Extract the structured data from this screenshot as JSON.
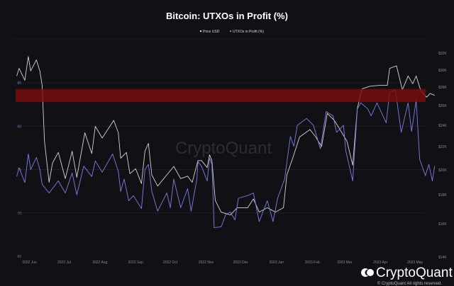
{
  "chart_data": {
    "type": "line",
    "title": "Bitcoin: UTXOs in Profit (%)",
    "legend": [
      "Price USD",
      "UTXOs in Profit (%)"
    ],
    "legend_placement": "top-center",
    "grid": "horizontal",
    "x_ticks": [
      "2022 Jun",
      "2022 Jul",
      "2022 Aug",
      "2022 Sep",
      "2022 Oct",
      "2022 Nov",
      "2022 Dec",
      "2023 Jan",
      "2023 Feb",
      "2023 Mar",
      "2023 Apr",
      "2023 May"
    ],
    "x_tick_dates": [
      "2022-06-01",
      "2022-07-01",
      "2022-08-01",
      "2022-09-01",
      "2022-10-01",
      "2022-11-01",
      "2022-12-01",
      "2023-01-01",
      "2023-02-01",
      "2023-03-01",
      "2023-04-01",
      "2023-05-01"
    ],
    "xlim": [
      "2022-05-20",
      "2023-05-20"
    ],
    "y_left": {
      "ticks": [
        "65",
        "70",
        "75",
        "80",
        "85"
      ],
      "tick_values": [
        65,
        70,
        75,
        80,
        85
      ],
      "ylim": [
        65,
        89.5
      ]
    },
    "y_right": {
      "ticks": [
        "$14K",
        "$16K",
        "$18K",
        "$20K",
        "$22K",
        "$24K",
        "$26K",
        "$28K",
        "$30K",
        "$32K"
      ],
      "tick_values": [
        14000,
        16000,
        18000,
        20000,
        22000,
        24000,
        26000,
        28000,
        30000,
        32000
      ]
    },
    "highlight_band": {
      "from": 82.8,
      "to": 84.3,
      "axis": "left",
      "color": "#7a0c0c"
    },
    "series": [
      {
        "name": "Price USD",
        "axis": "right",
        "color": "#d4d4d4",
        "points": [
          [
            "2022-05-21",
            29300
          ],
          [
            "2022-05-23",
            30200
          ],
          [
            "2022-05-28",
            28800
          ],
          [
            "2022-05-31",
            31600
          ],
          [
            "2022-06-02",
            29900
          ],
          [
            "2022-06-07",
            31200
          ],
          [
            "2022-06-10",
            29900
          ],
          [
            "2022-06-12",
            28200
          ],
          [
            "2022-06-14",
            22500
          ],
          [
            "2022-06-18",
            19000
          ],
          [
            "2022-06-21",
            20600
          ],
          [
            "2022-06-26",
            21500
          ],
          [
            "2022-07-02",
            19300
          ],
          [
            "2022-07-08",
            21600
          ],
          [
            "2022-07-12",
            19400
          ],
          [
            "2022-07-19",
            23300
          ],
          [
            "2022-07-25",
            21400
          ],
          [
            "2022-07-28",
            23900
          ],
          [
            "2022-08-03",
            22800
          ],
          [
            "2022-08-13",
            24500
          ],
          [
            "2022-08-17",
            23300
          ],
          [
            "2022-08-19",
            21000
          ],
          [
            "2022-08-24",
            21500
          ],
          [
            "2022-08-27",
            19700
          ],
          [
            "2022-09-01",
            20100
          ],
          [
            "2022-09-06",
            18900
          ],
          [
            "2022-09-09",
            21600
          ],
          [
            "2022-09-12",
            22300
          ],
          [
            "2022-09-15",
            19600
          ],
          [
            "2022-09-20",
            18700
          ],
          [
            "2022-09-28",
            19600
          ],
          [
            "2022-10-04",
            20300
          ],
          [
            "2022-10-10",
            19300
          ],
          [
            "2022-10-16",
            19500
          ],
          [
            "2022-10-20",
            19000
          ],
          [
            "2022-10-25",
            20800
          ],
          [
            "2022-10-28",
            20800
          ],
          [
            "2022-11-02",
            20200
          ],
          [
            "2022-11-04",
            21300
          ],
          [
            "2022-11-06",
            20800
          ],
          [
            "2022-11-09",
            17600
          ],
          [
            "2022-11-14",
            16800
          ],
          [
            "2022-11-22",
            16600
          ],
          [
            "2022-11-28",
            17100
          ],
          [
            "2022-12-07",
            17100
          ],
          [
            "2022-12-12",
            17700
          ],
          [
            "2022-12-17",
            16800
          ],
          [
            "2022-12-24",
            17100
          ],
          [
            "2022-12-31",
            16800
          ],
          [
            "2023-01-07",
            17100
          ],
          [
            "2023-01-10",
            19600
          ],
          [
            "2023-01-15",
            21000
          ],
          [
            "2023-01-21",
            22900
          ],
          [
            "2023-01-30",
            23600
          ],
          [
            "2023-02-04",
            22900
          ],
          [
            "2023-02-09",
            22000
          ],
          [
            "2023-02-14",
            25200
          ],
          [
            "2023-02-20",
            24500
          ],
          [
            "2023-02-25",
            23600
          ],
          [
            "2023-03-03",
            22500
          ],
          [
            "2023-03-08",
            20400
          ],
          [
            "2023-03-12",
            25700
          ],
          [
            "2023-03-16",
            27800
          ],
          [
            "2023-03-23",
            28100
          ],
          [
            "2023-03-31",
            28200
          ],
          [
            "2023-04-07",
            28200
          ],
          [
            "2023-04-09",
            30200
          ],
          [
            "2023-04-15",
            30500
          ],
          [
            "2023-04-20",
            27700
          ],
          [
            "2023-04-25",
            29300
          ],
          [
            "2023-04-29",
            28400
          ],
          [
            "2023-05-02",
            29300
          ],
          [
            "2023-05-06",
            27600
          ],
          [
            "2023-05-11",
            26900
          ],
          [
            "2023-05-14",
            27300
          ],
          [
            "2023-05-18",
            27100
          ]
        ]
      },
      {
        "name": "UTXOs in Profit (%)",
        "axis": "left",
        "color": "#7b7ee6",
        "points": [
          [
            "2022-05-21",
            74.2
          ],
          [
            "2022-05-23",
            75.2
          ],
          [
            "2022-05-28",
            73.5
          ],
          [
            "2022-05-31",
            76.8
          ],
          [
            "2022-06-02",
            75.0
          ],
          [
            "2022-06-07",
            76.4
          ],
          [
            "2022-06-10",
            75.0
          ],
          [
            "2022-06-12",
            73.3
          ],
          [
            "2022-06-18",
            72.3
          ],
          [
            "2022-06-26",
            73.7
          ],
          [
            "2022-07-02",
            72.3
          ],
          [
            "2022-07-08",
            74.6
          ],
          [
            "2022-07-12",
            72.1
          ],
          [
            "2022-07-18",
            75.4
          ],
          [
            "2022-07-25",
            74.2
          ],
          [
            "2022-07-28",
            76.0
          ],
          [
            "2022-08-03",
            74.7
          ],
          [
            "2022-08-12",
            76.8
          ],
          [
            "2022-08-17",
            74.8
          ],
          [
            "2022-08-19",
            72.5
          ],
          [
            "2022-08-22",
            73.9
          ],
          [
            "2022-08-26",
            71.4
          ],
          [
            "2022-08-30",
            72.0
          ],
          [
            "2022-09-06",
            70.5
          ],
          [
            "2022-09-09",
            75.0
          ],
          [
            "2022-09-12",
            75.6
          ],
          [
            "2022-09-15",
            72.5
          ],
          [
            "2022-09-20",
            70.2
          ],
          [
            "2022-09-28",
            72.3
          ],
          [
            "2022-10-01",
            70.6
          ],
          [
            "2022-10-04",
            73.9
          ],
          [
            "2022-10-10",
            70.6
          ],
          [
            "2022-10-16",
            72.8
          ],
          [
            "2022-10-19",
            70.2
          ],
          [
            "2022-10-24",
            73.9
          ],
          [
            "2022-10-25",
            75.9
          ],
          [
            "2022-10-28",
            75.4
          ],
          [
            "2022-11-02",
            73.7
          ],
          [
            "2022-11-04",
            76.3
          ],
          [
            "2022-11-06",
            75.6
          ],
          [
            "2022-11-08",
            68.3
          ],
          [
            "2022-11-14",
            68.4
          ],
          [
            "2022-11-18",
            69.8
          ],
          [
            "2022-11-22",
            70.1
          ],
          [
            "2022-11-26",
            69.2
          ],
          [
            "2022-11-29",
            71.7
          ],
          [
            "2022-12-07",
            72.0
          ],
          [
            "2022-12-12",
            72.3
          ],
          [
            "2022-12-17",
            69.0
          ],
          [
            "2022-12-24",
            71.4
          ],
          [
            "2022-12-29",
            69.0
          ],
          [
            "2023-01-02",
            71.7
          ],
          [
            "2023-01-08",
            73.9
          ],
          [
            "2023-01-13",
            78.8
          ],
          [
            "2023-01-16",
            77.7
          ],
          [
            "2023-01-19",
            80.1
          ],
          [
            "2023-01-27",
            80.9
          ],
          [
            "2023-02-02",
            80.1
          ],
          [
            "2023-02-08",
            77.4
          ],
          [
            "2023-02-13",
            81.7
          ],
          [
            "2023-02-19",
            81.2
          ],
          [
            "2023-02-22",
            79.3
          ],
          [
            "2023-02-28",
            80.1
          ],
          [
            "2023-03-02",
            77.2
          ],
          [
            "2023-03-08",
            73.7
          ],
          [
            "2023-03-12",
            82.0
          ],
          [
            "2023-03-15",
            82.7
          ],
          [
            "2023-03-21",
            82.0
          ],
          [
            "2023-03-24",
            81.2
          ],
          [
            "2023-03-29",
            82.7
          ],
          [
            "2023-04-06",
            80.4
          ],
          [
            "2023-04-09",
            83.9
          ],
          [
            "2023-04-14",
            84.2
          ],
          [
            "2023-04-19",
            79.3
          ],
          [
            "2023-04-25",
            82.7
          ],
          [
            "2023-04-28",
            79.4
          ],
          [
            "2023-05-02",
            83.0
          ],
          [
            "2023-05-05",
            76.2
          ],
          [
            "2023-05-10",
            74.3
          ],
          [
            "2023-05-13",
            75.6
          ],
          [
            "2023-05-16",
            73.7
          ],
          [
            "2023-05-18",
            75.4
          ]
        ]
      }
    ],
    "colors": {
      "background": "#111115",
      "grid": "#26262c",
      "left_tick": "#6b6cb8",
      "right_tick": "#8a8a8a",
      "x_tick": "#8a8a8a"
    }
  },
  "watermark": "CryptoQuant",
  "footer": {
    "logo_text": "CryptoQuant",
    "copyright": "© CryptoQuant All rights reserved."
  }
}
